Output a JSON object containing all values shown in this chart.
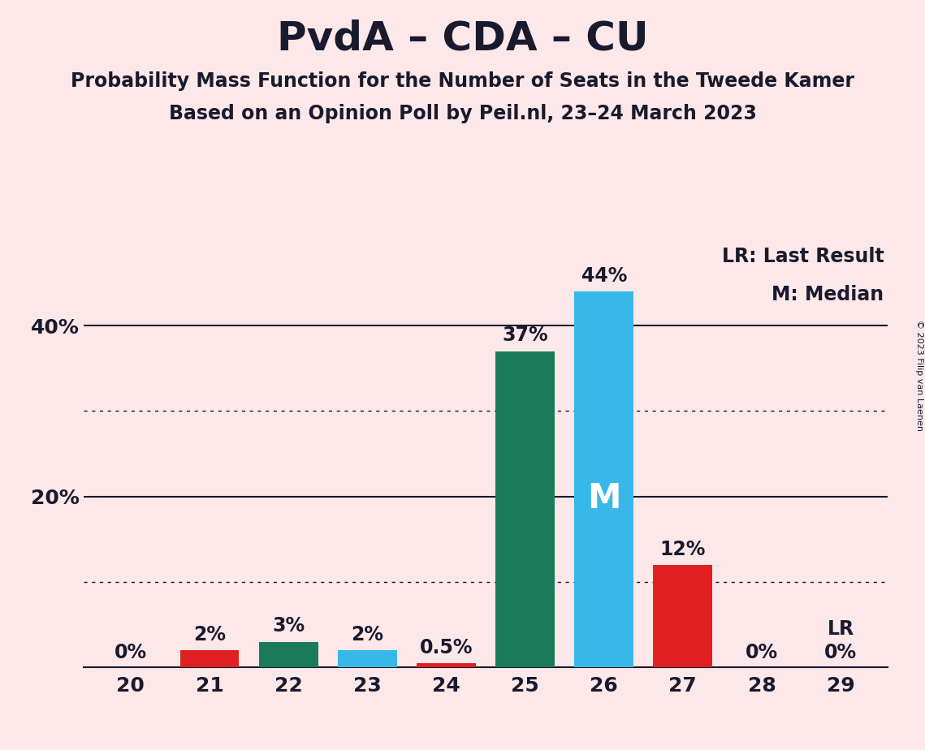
{
  "title": "PvdA – CDA – CU",
  "subtitle1": "Probability Mass Function for the Number of Seats in the Tweede Kamer",
  "subtitle2": "Based on an Opinion Poll by Peil.nl, 23–24 March 2023",
  "copyright": "© 2023 Filip van Laenen",
  "background_color": "#fce8e8",
  "categories": [
    20,
    21,
    22,
    23,
    24,
    25,
    26,
    27,
    28,
    29
  ],
  "values": [
    0.0,
    2.0,
    3.0,
    2.0,
    0.5,
    37.0,
    44.0,
    12.0,
    0.0,
    0.0
  ],
  "bar_colors": [
    "#fce8e8",
    "#e02020",
    "#1a7a5a",
    "#38b8e8",
    "#e02020",
    "#1a7a5a",
    "#38b8e8",
    "#e02020",
    "#fce8e8",
    "#fce8e8"
  ],
  "value_labels": [
    "0%",
    "2%",
    "3%",
    "2%",
    "0.5%",
    "37%",
    "44%",
    "12%",
    "0%",
    "0%"
  ],
  "median_bar": 26,
  "lr_bar": 29,
  "lr_label": "LR",
  "median_label": "M",
  "legend_text1": "LR: Last Result",
  "legend_text2": "M: Median",
  "ylim": [
    0,
    50
  ],
  "dotted_lines": [
    10,
    30
  ],
  "solid_lines": [
    20,
    40
  ],
  "title_fontsize": 36,
  "subtitle_fontsize": 17,
  "tick_fontsize": 18,
  "annotation_fontsize": 17,
  "legend_fontsize": 17,
  "median_fontsize": 30,
  "lr_above_fontsize": 17,
  "text_color": "#1a1a2e"
}
